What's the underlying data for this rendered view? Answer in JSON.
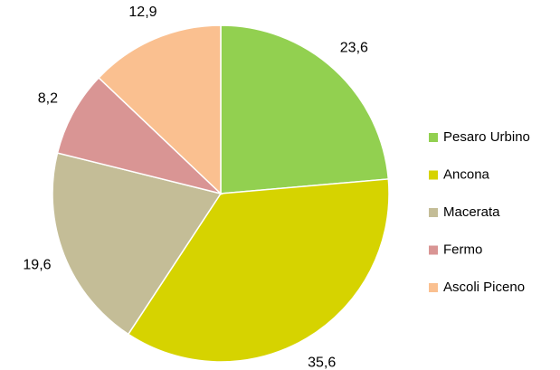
{
  "chart_data": {
    "type": "pie",
    "categories": [
      "Pesaro Urbino",
      "Ancona",
      "Macerata",
      "Fermo",
      "Ascoli Piceno"
    ],
    "values": [
      23.6,
      35.6,
      19.6,
      8.2,
      12.9
    ],
    "value_labels": [
      "23,6",
      "35,6",
      "19,6",
      "8,2",
      "12,9"
    ],
    "colors": [
      "#92d050",
      "#d6d300",
      "#c4bd97",
      "#d99594",
      "#fac090"
    ],
    "legend": "right"
  }
}
